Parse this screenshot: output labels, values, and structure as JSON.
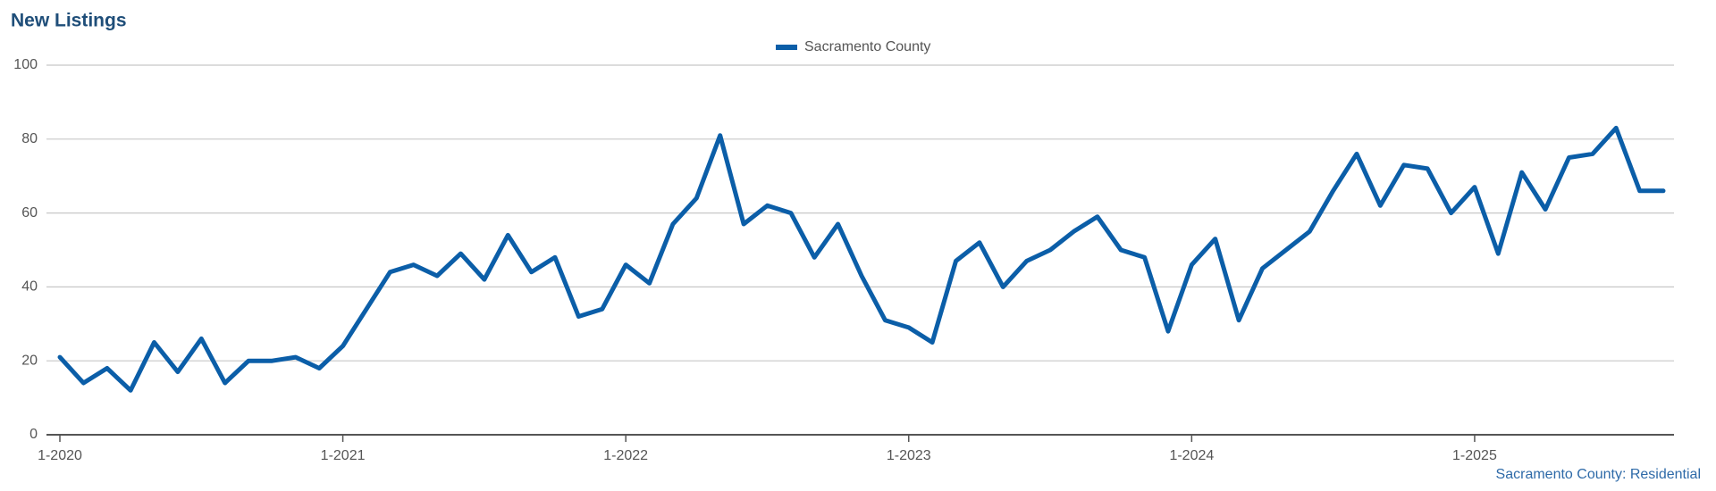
{
  "chart_data": {
    "type": "line",
    "title": "New Listings",
    "categories": [
      "1-2020",
      null,
      null,
      null,
      null,
      null,
      null,
      null,
      null,
      null,
      null,
      null,
      "1-2021",
      null,
      null,
      null,
      null,
      null,
      null,
      null,
      null,
      null,
      null,
      null,
      "1-2022",
      null,
      null,
      null,
      null,
      null,
      null,
      null,
      null,
      null,
      null,
      null,
      "1-2023",
      null,
      null,
      null,
      null,
      null,
      null,
      null,
      null,
      null,
      null,
      null,
      "1-2024",
      null,
      null,
      null,
      null,
      null,
      null,
      null,
      null,
      null,
      null,
      null,
      "1-2025",
      null,
      null,
      null,
      null,
      null,
      null,
      null,
      null
    ],
    "series": [
      {
        "name": "Sacramento County",
        "color": "#0b5ea8",
        "values": [
          21,
          14,
          18,
          12,
          25,
          17,
          26,
          14,
          20,
          20,
          21,
          18,
          24,
          34,
          44,
          46,
          43,
          49,
          42,
          54,
          44,
          48,
          32,
          34,
          46,
          41,
          57,
          64,
          81,
          57,
          62,
          60,
          48,
          57,
          43,
          31,
          29,
          25,
          47,
          52,
          40,
          47,
          50,
          55,
          59,
          50,
          48,
          28,
          46,
          53,
          31,
          45,
          50,
          55,
          66,
          76,
          62,
          73,
          72,
          60,
          67,
          49,
          71,
          61,
          75,
          76,
          83,
          66,
          66
        ]
      }
    ],
    "ylim": [
      0,
      100
    ],
    "yticks": [
      0,
      20,
      40,
      60,
      80,
      100
    ],
    "grid": true,
    "footnote": "Sacramento County: Residential"
  }
}
